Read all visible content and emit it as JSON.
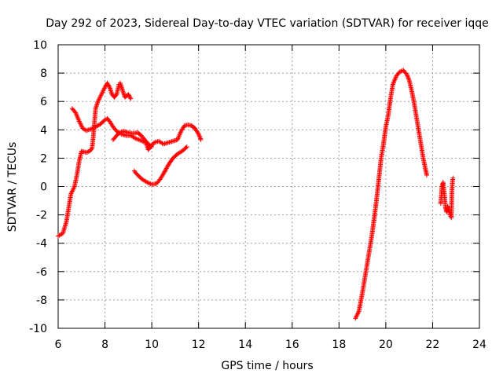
{
  "chart_data": {
    "type": "scatter",
    "title": "Day 292 of 2023, Sidereal Day-to-day VTEC variation (SDTVAR) for receiver iqqe",
    "xlabel": "GPS time / hours",
    "ylabel": "SDTVAR / TECUs",
    "xlim": [
      6,
      24
    ],
    "ylim": [
      -10,
      10
    ],
    "xticks": [
      6,
      8,
      10,
      12,
      14,
      16,
      18,
      20,
      22,
      24
    ],
    "yticks": [
      -10,
      -8,
      -6,
      -4,
      -2,
      0,
      2,
      4,
      6,
      8,
      10
    ],
    "grid": true,
    "marker": "+",
    "color": "#ff0000",
    "series": [
      {
        "name": "segment-1",
        "points": [
          [
            6.0,
            -3.5
          ],
          [
            6.2,
            -3.3
          ],
          [
            6.35,
            -2.5
          ],
          [
            6.45,
            -1.5
          ],
          [
            6.55,
            -0.5
          ],
          [
            6.7,
            0.0
          ],
          [
            6.8,
            0.8
          ],
          [
            6.9,
            1.8
          ],
          [
            7.0,
            2.5
          ],
          [
            7.2,
            2.4
          ],
          [
            7.35,
            2.5
          ],
          [
            7.45,
            2.7
          ],
          [
            7.5,
            3.5
          ],
          [
            7.55,
            4.5
          ],
          [
            7.6,
            5.5
          ],
          [
            7.7,
            6.0
          ],
          [
            7.85,
            6.5
          ],
          [
            8.0,
            7.0
          ],
          [
            8.1,
            7.3
          ],
          [
            8.2,
            7.0
          ],
          [
            8.3,
            6.5
          ],
          [
            8.4,
            6.3
          ],
          [
            8.5,
            6.5
          ],
          [
            8.6,
            7.2
          ],
          [
            8.65,
            7.3
          ],
          [
            8.75,
            6.8
          ],
          [
            8.85,
            6.3
          ],
          [
            9.0,
            6.5
          ],
          [
            9.1,
            6.2
          ]
        ]
      },
      {
        "name": "segment-2",
        "points": [
          [
            6.6,
            5.5
          ],
          [
            6.75,
            5.2
          ],
          [
            6.9,
            4.6
          ],
          [
            7.05,
            4.1
          ],
          [
            7.2,
            3.95
          ],
          [
            7.4,
            4.05
          ],
          [
            7.6,
            4.2
          ],
          [
            7.8,
            4.4
          ],
          [
            8.0,
            4.7
          ],
          [
            8.1,
            4.8
          ],
          [
            8.2,
            4.6
          ],
          [
            8.35,
            4.2
          ],
          [
            8.5,
            3.9
          ],
          [
            8.7,
            3.7
          ],
          [
            8.9,
            3.6
          ],
          [
            9.1,
            3.6
          ],
          [
            9.3,
            3.4
          ],
          [
            9.45,
            3.3
          ],
          [
            9.6,
            3.2
          ],
          [
            9.75,
            3.1
          ],
          [
            9.85,
            2.6
          ],
          [
            9.95,
            2.8
          ],
          [
            10.1,
            3.1
          ],
          [
            10.3,
            3.2
          ],
          [
            10.5,
            3.0
          ],
          [
            10.7,
            3.1
          ],
          [
            10.9,
            3.2
          ],
          [
            11.1,
            3.3
          ],
          [
            11.25,
            3.9
          ],
          [
            11.4,
            4.3
          ],
          [
            11.55,
            4.35
          ],
          [
            11.7,
            4.3
          ],
          [
            11.85,
            4.1
          ],
          [
            12.0,
            3.7
          ],
          [
            12.1,
            3.3
          ]
        ]
      },
      {
        "name": "segment-3",
        "points": [
          [
            8.35,
            3.3
          ],
          [
            8.5,
            3.6
          ],
          [
            8.6,
            3.8
          ],
          [
            8.8,
            3.9
          ],
          [
            9.0,
            3.8
          ],
          [
            9.2,
            3.75
          ],
          [
            9.4,
            3.8
          ],
          [
            9.55,
            3.6
          ],
          [
            9.7,
            3.3
          ],
          [
            9.85,
            3.0
          ],
          [
            10.0,
            2.8
          ]
        ]
      },
      {
        "name": "segment-4",
        "points": [
          [
            9.25,
            1.1
          ],
          [
            9.4,
            0.8
          ],
          [
            9.6,
            0.5
          ],
          [
            9.8,
            0.3
          ],
          [
            10.0,
            0.15
          ],
          [
            10.2,
            0.2
          ],
          [
            10.35,
            0.5
          ],
          [
            10.5,
            0.9
          ],
          [
            10.7,
            1.5
          ],
          [
            10.9,
            2.0
          ],
          [
            11.1,
            2.3
          ],
          [
            11.3,
            2.5
          ],
          [
            11.5,
            2.8
          ]
        ]
      },
      {
        "name": "segment-5",
        "points": [
          [
            18.7,
            -9.3
          ],
          [
            18.85,
            -8.8
          ],
          [
            19.0,
            -7.5
          ],
          [
            19.1,
            -6.5
          ],
          [
            19.2,
            -5.5
          ],
          [
            19.3,
            -4.5
          ],
          [
            19.4,
            -3.5
          ],
          [
            19.5,
            -2.3
          ],
          [
            19.6,
            -1.0
          ],
          [
            19.7,
            0.5
          ],
          [
            19.8,
            2.0
          ],
          [
            19.9,
            3.0
          ],
          [
            20.0,
            4.2
          ],
          [
            20.1,
            5.0
          ],
          [
            20.2,
            6.2
          ],
          [
            20.3,
            7.2
          ],
          [
            20.45,
            7.8
          ],
          [
            20.6,
            8.1
          ],
          [
            20.75,
            8.2
          ],
          [
            20.9,
            7.9
          ],
          [
            21.0,
            7.5
          ],
          [
            21.1,
            6.8
          ],
          [
            21.2,
            6.0
          ],
          [
            21.3,
            5.0
          ],
          [
            21.4,
            4.0
          ],
          [
            21.5,
            3.0
          ],
          [
            21.6,
            2.0
          ],
          [
            21.7,
            1.2
          ],
          [
            21.75,
            0.8
          ]
        ]
      },
      {
        "name": "segment-6",
        "points": [
          [
            22.35,
            -1.2
          ],
          [
            22.4,
            0.0
          ],
          [
            22.45,
            0.3
          ],
          [
            22.5,
            -0.5
          ],
          [
            22.55,
            -1.5
          ],
          [
            22.6,
            -1.8
          ],
          [
            22.65,
            -1.4
          ],
          [
            22.7,
            -1.6
          ],
          [
            22.75,
            -2.0
          ],
          [
            22.8,
            -2.2
          ],
          [
            22.82,
            -0.5
          ],
          [
            22.85,
            0.4
          ],
          [
            22.87,
            0.6
          ]
        ]
      }
    ]
  }
}
